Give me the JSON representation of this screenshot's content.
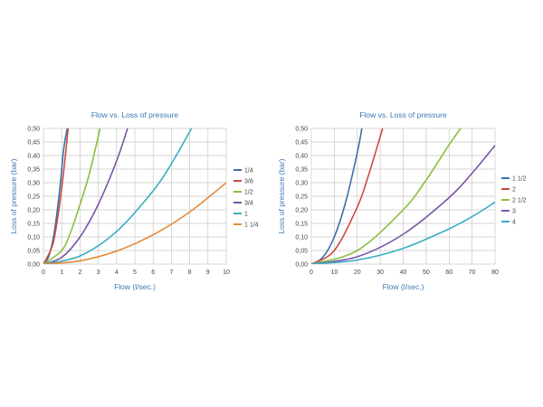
{
  "chart_data": [
    {
      "type": "line",
      "title": "Flow vs. Loss of  pressure",
      "xlabel": "Flow (l/sec.)",
      "ylabel": "Loss of  pressure  (bar)",
      "xlim": [
        0,
        10
      ],
      "ylim": [
        0,
        0.5
      ],
      "grid": true,
      "legend_position": "right",
      "x_ticks": [
        0,
        1,
        2,
        3,
        4,
        5,
        6,
        7,
        8,
        9,
        10
      ],
      "x_tick_labels": [
        "0",
        "1",
        "2",
        "3",
        "4",
        "5",
        "6",
        "7",
        "8",
        "9",
        "10"
      ],
      "y_ticks": [
        0,
        0.05,
        0.1,
        0.15,
        0.2,
        0.25,
        0.3,
        0.35,
        0.4,
        0.45,
        0.5
      ],
      "y_tick_labels": [
        "0,00",
        "0,05",
        "0,10",
        "0,15",
        "0,20",
        "0,25",
        "0,30",
        "0,35",
        "0,40",
        "0,45",
        "0,50"
      ],
      "series": [
        {
          "name": "1/4",
          "color": "#3a6fa8",
          "x": [
            0,
            0.3,
            0.6,
            0.9,
            1.1,
            1.3
          ],
          "y": [
            0,
            0.03,
            0.12,
            0.28,
            0.42,
            0.5
          ]
        },
        {
          "name": "3/8",
          "color": "#cc4b3f",
          "x": [
            0,
            0.5,
            0.8,
            1.0,
            1.2,
            1.35
          ],
          "y": [
            0,
            0.07,
            0.18,
            0.28,
            0.4,
            0.5
          ]
        },
        {
          "name": "1/2",
          "color": "#8cbf3f",
          "x": [
            0,
            1.0,
            1.5,
            2.0,
            2.5,
            3.1
          ],
          "y": [
            0,
            0.05,
            0.12,
            0.22,
            0.33,
            0.5
          ]
        },
        {
          "name": "3/4",
          "color": "#7a55a8",
          "x": [
            0,
            1.0,
            2.0,
            3.0,
            4.0,
            4.6
          ],
          "y": [
            0,
            0.025,
            0.1,
            0.22,
            0.38,
            0.5
          ]
        },
        {
          "name": "1",
          "color": "#3aaec2",
          "x": [
            0,
            2,
            4,
            6,
            7,
            8.1
          ],
          "y": [
            0,
            0.03,
            0.12,
            0.27,
            0.37,
            0.5
          ]
        },
        {
          "name": "1 1/4",
          "color": "#e48a3a",
          "x": [
            0,
            2,
            4,
            6,
            8,
            10
          ],
          "y": [
            0,
            0.012,
            0.048,
            0.108,
            0.192,
            0.3
          ]
        }
      ]
    },
    {
      "type": "line",
      "title": "Flow vs. Loss of  pressure",
      "xlabel": "Flow (l/sec.)",
      "ylabel": "Loss of  pressure  (bar)",
      "xlim": [
        0,
        80
      ],
      "ylim": [
        0,
        0.5
      ],
      "grid": true,
      "legend_position": "right",
      "x_ticks": [
        0,
        10,
        20,
        30,
        40,
        50,
        60,
        70,
        80
      ],
      "x_tick_labels": [
        "0",
        "10",
        "20",
        "30",
        "40",
        "50",
        "60",
        "70",
        "80"
      ],
      "y_ticks": [
        0,
        0.05,
        0.1,
        0.15,
        0.2,
        0.25,
        0.3,
        0.35,
        0.4,
        0.45,
        0.5
      ],
      "y_tick_labels": [
        "0,00",
        "0,05",
        "0,10",
        "0,15",
        "0,20",
        "0,25",
        "0,30",
        "0,35",
        "0,40",
        "0,45",
        "0,50"
      ],
      "series": [
        {
          "name": "1 1/2",
          "color": "#3a6fa8",
          "x": [
            0,
            5,
            10,
            15,
            20,
            22
          ],
          "y": [
            0,
            0.025,
            0.1,
            0.23,
            0.41,
            0.5
          ]
        },
        {
          "name": "2",
          "color": "#cc4b3f",
          "x": [
            0,
            10,
            20,
            25,
            30,
            31
          ],
          "y": [
            0,
            0.05,
            0.21,
            0.33,
            0.47,
            0.5
          ]
        },
        {
          "name": "2 1/2",
          "color": "#8cbf3f",
          "x": [
            0,
            20,
            40,
            50,
            60,
            65
          ],
          "y": [
            0,
            0.05,
            0.2,
            0.31,
            0.44,
            0.5
          ]
        },
        {
          "name": "3",
          "color": "#7a55a8",
          "x": [
            0,
            20,
            40,
            60,
            70,
            80
          ],
          "y": [
            0,
            0.027,
            0.11,
            0.245,
            0.335,
            0.437
          ]
        },
        {
          "name": "4",
          "color": "#3aaec2",
          "x": [
            0,
            20,
            40,
            60,
            70,
            80
          ],
          "y": [
            0,
            0.015,
            0.058,
            0.13,
            0.175,
            0.228
          ]
        }
      ]
    }
  ]
}
